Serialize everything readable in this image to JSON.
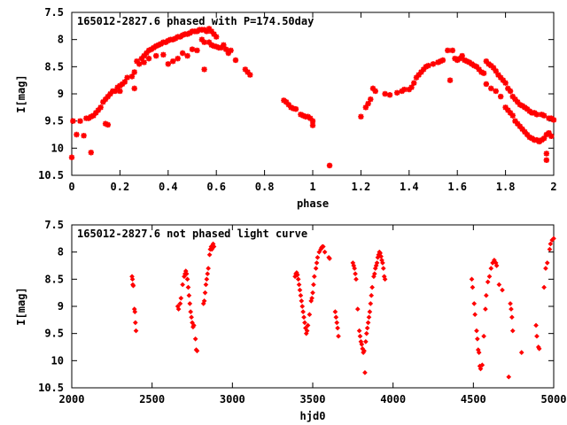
{
  "chart_data": [
    {
      "type": "scatter",
      "title": "165012-2827.6 phased with P=174.50day",
      "xlabel": "phase",
      "ylabel": "I[mag]",
      "xlim": [
        0,
        2
      ],
      "ylim": [
        10.5,
        7.5
      ],
      "y_inverted": true,
      "xticks": [
        "0",
        "0.2",
        "0.4",
        "0.6",
        "0.8",
        "1",
        "1.2",
        "1.4",
        "1.6",
        "1.8",
        "2"
      ],
      "yticks": [
        "7.5",
        "8",
        "8.5",
        "9",
        "9.5",
        "10",
        "10.5"
      ],
      "marker": "star",
      "color": "#ff0000",
      "grid": false,
      "points": [
        [
          0.0,
          10.17
        ],
        [
          0.005,
          9.5
        ],
        [
          0.02,
          9.75
        ],
        [
          0.035,
          9.5
        ],
        [
          0.05,
          9.77
        ],
        [
          0.06,
          9.45
        ],
        [
          0.07,
          9.45
        ],
        [
          0.08,
          9.42
        ],
        [
          0.09,
          9.4
        ],
        [
          0.1,
          9.35
        ],
        [
          0.11,
          9.3
        ],
        [
          0.12,
          9.25
        ],
        [
          0.13,
          9.15
        ],
        [
          0.14,
          9.1
        ],
        [
          0.15,
          9.05
        ],
        [
          0.16,
          9.0
        ],
        [
          0.17,
          8.95
        ],
        [
          0.18,
          8.95
        ],
        [
          0.19,
          8.88
        ],
        [
          0.2,
          8.85
        ],
        [
          0.21,
          8.82
        ],
        [
          0.22,
          8.78
        ],
        [
          0.23,
          8.7
        ],
        [
          0.25,
          8.68
        ],
        [
          0.26,
          8.6
        ],
        [
          0.27,
          8.4
        ],
        [
          0.28,
          8.45
        ],
        [
          0.29,
          8.35
        ],
        [
          0.3,
          8.3
        ],
        [
          0.31,
          8.25
        ],
        [
          0.32,
          8.2
        ],
        [
          0.33,
          8.18
        ],
        [
          0.34,
          8.15
        ],
        [
          0.35,
          8.12
        ],
        [
          0.36,
          8.1
        ],
        [
          0.37,
          8.08
        ],
        [
          0.38,
          8.05
        ],
        [
          0.39,
          8.05
        ],
        [
          0.4,
          8.02
        ],
        [
          0.41,
          8.0
        ],
        [
          0.42,
          8.0
        ],
        [
          0.43,
          7.98
        ],
        [
          0.44,
          7.95
        ],
        [
          0.45,
          7.95
        ],
        [
          0.46,
          7.92
        ],
        [
          0.47,
          7.9
        ],
        [
          0.48,
          7.9
        ],
        [
          0.49,
          7.88
        ],
        [
          0.5,
          7.85
        ],
        [
          0.51,
          7.85
        ],
        [
          0.52,
          7.85
        ],
        [
          0.53,
          7.82
        ],
        [
          0.54,
          7.82
        ],
        [
          0.55,
          7.82
        ],
        [
          0.56,
          7.85
        ],
        [
          0.57,
          7.8
        ],
        [
          0.58,
          7.85
        ],
        [
          0.59,
          7.9
        ],
        [
          0.6,
          7.95
        ],
        [
          0.08,
          10.08
        ],
        [
          0.14,
          9.55
        ],
        [
          0.15,
          9.57
        ],
        [
          0.2,
          8.95
        ],
        [
          0.26,
          8.9
        ],
        [
          0.3,
          8.42
        ],
        [
          0.32,
          8.35
        ],
        [
          0.35,
          8.3
        ],
        [
          0.38,
          8.28
        ],
        [
          0.4,
          8.45
        ],
        [
          0.42,
          8.4
        ],
        [
          0.44,
          8.35
        ],
        [
          0.46,
          8.25
        ],
        [
          0.48,
          8.3
        ],
        [
          0.5,
          8.18
        ],
        [
          0.52,
          8.2
        ],
        [
          0.54,
          8.0
        ],
        [
          0.55,
          8.05
        ],
        [
          0.57,
          8.05
        ],
        [
          0.58,
          8.1
        ],
        [
          0.59,
          8.12
        ],
        [
          0.6,
          8.13
        ],
        [
          0.61,
          8.15
        ],
        [
          0.62,
          8.15
        ],
        [
          0.63,
          8.1
        ],
        [
          0.64,
          8.18
        ],
        [
          0.65,
          8.25
        ],
        [
          0.66,
          8.2
        ],
        [
          0.55,
          8.55
        ],
        [
          0.68,
          8.38
        ],
        [
          0.72,
          8.55
        ],
        [
          0.73,
          8.6
        ],
        [
          0.74,
          8.65
        ],
        [
          0.88,
          9.12
        ],
        [
          0.89,
          9.15
        ],
        [
          0.9,
          9.2
        ],
        [
          0.91,
          9.25
        ],
        [
          0.92,
          9.27
        ],
        [
          0.93,
          9.28
        ],
        [
          0.95,
          9.38
        ],
        [
          0.96,
          9.4
        ],
        [
          0.97,
          9.42
        ],
        [
          0.98,
          9.42
        ],
        [
          0.99,
          9.45
        ],
        [
          1.0,
          9.5
        ],
        [
          1.0,
          9.58
        ],
        [
          1.07,
          10.32
        ],
        [
          1.2,
          9.42
        ],
        [
          1.22,
          9.25
        ],
        [
          1.23,
          9.18
        ],
        [
          1.24,
          9.1
        ],
        [
          1.25,
          8.9
        ],
        [
          1.26,
          8.95
        ],
        [
          1.3,
          9.0
        ],
        [
          1.32,
          9.02
        ],
        [
          1.35,
          8.98
        ],
        [
          1.37,
          8.95
        ],
        [
          1.38,
          8.92
        ],
        [
          1.4,
          8.92
        ],
        [
          1.41,
          8.88
        ],
        [
          1.42,
          8.8
        ],
        [
          1.43,
          8.7
        ],
        [
          1.44,
          8.65
        ],
        [
          1.45,
          8.6
        ],
        [
          1.46,
          8.55
        ],
        [
          1.47,
          8.5
        ],
        [
          1.48,
          8.48
        ],
        [
          1.5,
          8.45
        ],
        [
          1.52,
          8.42
        ],
        [
          1.53,
          8.4
        ],
        [
          1.54,
          8.38
        ],
        [
          1.56,
          8.2
        ],
        [
          1.57,
          8.75
        ],
        [
          1.58,
          8.2
        ],
        [
          1.59,
          8.35
        ],
        [
          1.6,
          8.38
        ],
        [
          1.61,
          8.35
        ],
        [
          1.62,
          8.3
        ],
        [
          1.63,
          8.38
        ],
        [
          1.64,
          8.4
        ],
        [
          1.65,
          8.42
        ],
        [
          1.66,
          8.45
        ],
        [
          1.67,
          8.48
        ],
        [
          1.68,
          8.5
        ],
        [
          1.69,
          8.55
        ],
        [
          1.7,
          8.6
        ],
        [
          1.71,
          8.62
        ],
        [
          1.72,
          8.4
        ],
        [
          1.73,
          8.45
        ],
        [
          1.74,
          8.48
        ],
        [
          1.75,
          8.52
        ],
        [
          1.76,
          8.58
        ],
        [
          1.77,
          8.65
        ],
        [
          1.78,
          8.7
        ],
        [
          1.79,
          8.75
        ],
        [
          1.8,
          8.8
        ],
        [
          1.81,
          8.9
        ],
        [
          1.82,
          8.95
        ],
        [
          1.83,
          9.05
        ],
        [
          1.84,
          9.1
        ],
        [
          1.85,
          9.15
        ],
        [
          1.86,
          9.2
        ],
        [
          1.87,
          9.22
        ],
        [
          1.88,
          9.25
        ],
        [
          1.89,
          9.28
        ],
        [
          1.9,
          9.32
        ],
        [
          1.91,
          9.35
        ],
        [
          1.92,
          9.35
        ],
        [
          1.93,
          9.38
        ],
        [
          1.95,
          9.38
        ],
        [
          1.96,
          9.4
        ],
        [
          1.98,
          9.45
        ],
        [
          1.99,
          9.45
        ],
        [
          1.72,
          8.82
        ],
        [
          1.74,
          8.9
        ],
        [
          1.76,
          8.95
        ],
        [
          1.78,
          9.05
        ],
        [
          1.8,
          9.25
        ],
        [
          1.81,
          9.3
        ],
        [
          1.82,
          9.35
        ],
        [
          1.83,
          9.4
        ],
        [
          1.84,
          9.5
        ],
        [
          1.85,
          9.55
        ],
        [
          1.86,
          9.6
        ],
        [
          1.87,
          9.65
        ],
        [
          1.88,
          9.7
        ],
        [
          1.89,
          9.75
        ],
        [
          1.9,
          9.8
        ],
        [
          1.91,
          9.82
        ],
        [
          1.92,
          9.85
        ],
        [
          1.93,
          9.85
        ],
        [
          1.94,
          9.88
        ],
        [
          1.95,
          9.85
        ],
        [
          1.96,
          9.82
        ],
        [
          1.97,
          9.75
        ],
        [
          1.98,
          9.72
        ],
        [
          1.97,
          10.1
        ],
        [
          1.97,
          10.22
        ],
        [
          1.99,
          9.78
        ],
        [
          2.0,
          9.48
        ]
      ]
    },
    {
      "type": "scatter",
      "title": "165012-2827.6 not phased light curve",
      "xlabel": "hjd0",
      "ylabel": "I[mag]",
      "xlim": [
        2000,
        5000
      ],
      "ylim": [
        10.5,
        7.5
      ],
      "y_inverted": true,
      "xticks": [
        "2000",
        "2500",
        "3000",
        "3500",
        "4000",
        "4500",
        "5000"
      ],
      "yticks": [
        "7.5",
        "8",
        "8.5",
        "9",
        "9.5",
        "10",
        "10.5"
      ],
      "marker": "diamond",
      "color": "#ff0000",
      "grid": false,
      "points": [
        [
          2375,
          8.45
        ],
        [
          2378,
          8.5
        ],
        [
          2380,
          8.6
        ],
        [
          2383,
          8.62
        ],
        [
          2390,
          9.05
        ],
        [
          2393,
          9.1
        ],
        [
          2396,
          9.3
        ],
        [
          2400,
          9.45
        ],
        [
          2660,
          9.0
        ],
        [
          2665,
          9.05
        ],
        [
          2675,
          8.95
        ],
        [
          2680,
          8.85
        ],
        [
          2690,
          8.6
        ],
        [
          2700,
          8.45
        ],
        [
          2705,
          8.4
        ],
        [
          2710,
          8.35
        ],
        [
          2715,
          8.4
        ],
        [
          2720,
          8.5
        ],
        [
          2725,
          8.65
        ],
        [
          2730,
          8.8
        ],
        [
          2735,
          8.95
        ],
        [
          2740,
          9.1
        ],
        [
          2745,
          9.2
        ],
        [
          2750,
          9.3
        ],
        [
          2755,
          9.38
        ],
        [
          2760,
          9.35
        ],
        [
          2770,
          9.6
        ],
        [
          2775,
          9.8
        ],
        [
          2780,
          9.82
        ],
        [
          2820,
          8.95
        ],
        [
          2825,
          8.9
        ],
        [
          2830,
          8.75
        ],
        [
          2835,
          8.6
        ],
        [
          2840,
          8.5
        ],
        [
          2845,
          8.4
        ],
        [
          2850,
          8.3
        ],
        [
          2858,
          8.05
        ],
        [
          2862,
          7.95
        ],
        [
          2868,
          7.9
        ],
        [
          2872,
          7.95
        ],
        [
          2880,
          7.85
        ],
        [
          2885,
          7.9
        ],
        [
          3390,
          8.45
        ],
        [
          3395,
          8.4
        ],
        [
          3400,
          8.38
        ],
        [
          3405,
          8.42
        ],
        [
          3410,
          8.5
        ],
        [
          3415,
          8.6
        ],
        [
          3420,
          8.7
        ],
        [
          3425,
          8.8
        ],
        [
          3430,
          8.9
        ],
        [
          3435,
          9.0
        ],
        [
          3440,
          9.1
        ],
        [
          3445,
          9.2
        ],
        [
          3450,
          9.3
        ],
        [
          3455,
          9.4
        ],
        [
          3460,
          9.5
        ],
        [
          3465,
          9.45
        ],
        [
          3470,
          9.35
        ],
        [
          3480,
          9.15
        ],
        [
          3490,
          8.9
        ],
        [
          3495,
          8.85
        ],
        [
          3500,
          8.75
        ],
        [
          3505,
          8.6
        ],
        [
          3510,
          8.45
        ],
        [
          3520,
          8.3
        ],
        [
          3525,
          8.2
        ],
        [
          3530,
          8.1
        ],
        [
          3540,
          8.0
        ],
        [
          3550,
          7.95
        ],
        [
          3555,
          7.92
        ],
        [
          3560,
          7.9
        ],
        [
          3565,
          7.9
        ],
        [
          3575,
          8.0
        ],
        [
          3600,
          8.1
        ],
        [
          3605,
          8.12
        ],
        [
          3640,
          9.1
        ],
        [
          3645,
          9.2
        ],
        [
          3650,
          9.3
        ],
        [
          3655,
          9.4
        ],
        [
          3660,
          9.55
        ],
        [
          3750,
          8.2
        ],
        [
          3755,
          8.25
        ],
        [
          3760,
          8.3
        ],
        [
          3765,
          8.4
        ],
        [
          3770,
          8.5
        ],
        [
          3780,
          9.05
        ],
        [
          3790,
          9.45
        ],
        [
          3795,
          9.55
        ],
        [
          3800,
          9.65
        ],
        [
          3805,
          9.7
        ],
        [
          3810,
          9.78
        ],
        [
          3815,
          9.85
        ],
        [
          3820,
          9.82
        ],
        [
          3825,
          10.22
        ],
        [
          3830,
          9.65
        ],
        [
          3835,
          9.5
        ],
        [
          3840,
          9.4
        ],
        [
          3845,
          9.3
        ],
        [
          3850,
          9.2
        ],
        [
          3855,
          9.1
        ],
        [
          3860,
          8.95
        ],
        [
          3865,
          8.8
        ],
        [
          3870,
          8.65
        ],
        [
          3880,
          8.45
        ],
        [
          3885,
          8.4
        ],
        [
          3890,
          8.3
        ],
        [
          3895,
          8.25
        ],
        [
          3900,
          8.2
        ],
        [
          3905,
          8.1
        ],
        [
          3910,
          8.05
        ],
        [
          3915,
          8.0
        ],
        [
          3920,
          8.02
        ],
        [
          3925,
          8.08
        ],
        [
          3930,
          8.15
        ],
        [
          3935,
          8.2
        ],
        [
          3940,
          8.3
        ],
        [
          3945,
          8.45
        ],
        [
          3950,
          8.5
        ],
        [
          4490,
          8.5
        ],
        [
          4495,
          8.65
        ],
        [
          4505,
          8.95
        ],
        [
          4510,
          9.15
        ],
        [
          4520,
          9.45
        ],
        [
          4525,
          9.6
        ],
        [
          4530,
          9.8
        ],
        [
          4535,
          9.85
        ],
        [
          4540,
          10.1
        ],
        [
          4545,
          10.15
        ],
        [
          4555,
          10.08
        ],
        [
          4565,
          9.55
        ],
        [
          4575,
          9.05
        ],
        [
          4580,
          8.8
        ],
        [
          4590,
          8.55
        ],
        [
          4600,
          8.45
        ],
        [
          4610,
          8.3
        ],
        [
          4620,
          8.2
        ],
        [
          4630,
          8.15
        ],
        [
          4640,
          8.2
        ],
        [
          4645,
          8.25
        ],
        [
          4660,
          8.6
        ],
        [
          4680,
          8.7
        ],
        [
          4720,
          10.3
        ],
        [
          4730,
          8.95
        ],
        [
          4735,
          9.05
        ],
        [
          4740,
          9.2
        ],
        [
          4745,
          9.45
        ],
        [
          4800,
          9.85
        ],
        [
          4890,
          9.35
        ],
        [
          4895,
          9.55
        ],
        [
          4905,
          9.75
        ],
        [
          4910,
          9.78
        ],
        [
          4940,
          8.65
        ],
        [
          4950,
          8.3
        ],
        [
          4960,
          8.2
        ],
        [
          4975,
          7.95
        ],
        [
          4980,
          7.85
        ],
        [
          4990,
          7.78
        ],
        [
          5000,
          7.75
        ]
      ]
    }
  ]
}
